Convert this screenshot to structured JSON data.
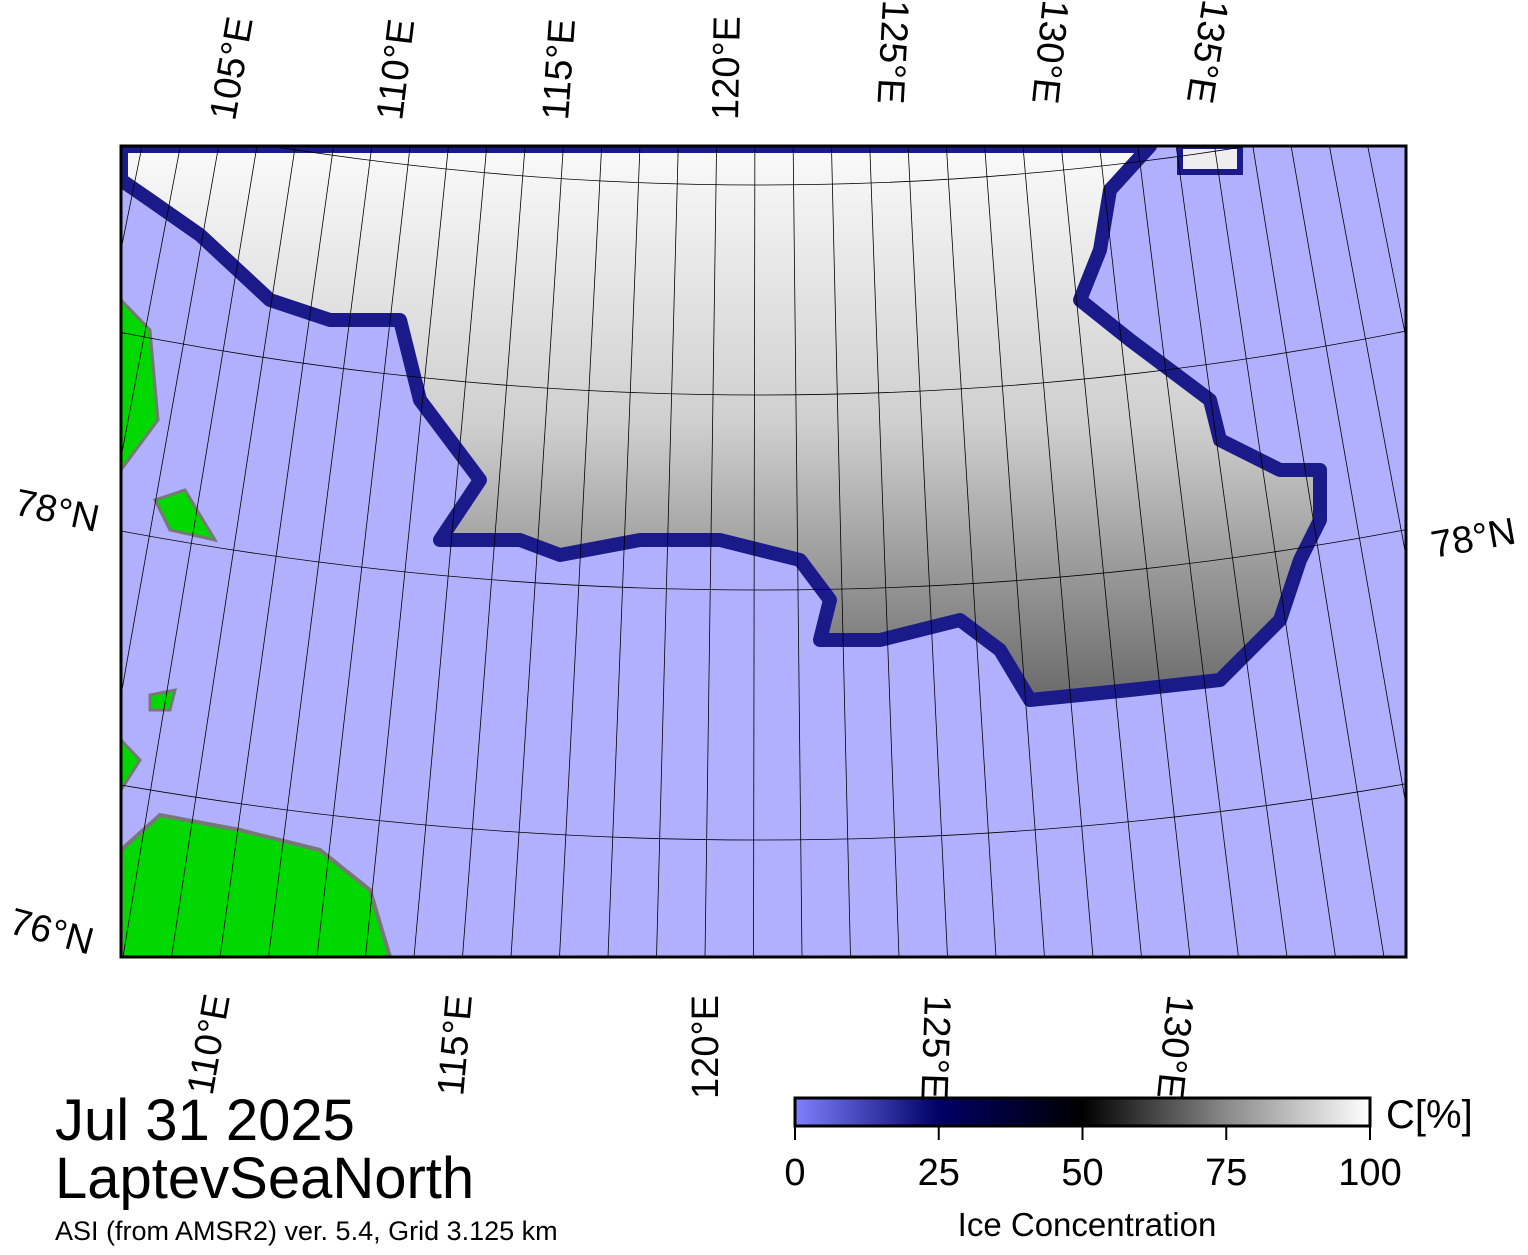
{
  "header": {
    "date": "Jul 31 2025",
    "region": "LaptevSeaNorth",
    "product": "ASI (from AMSR2) ver. 5.4,  Grid 3.125 km"
  },
  "map": {
    "lon_labels_top": [
      "105°E",
      "110°E",
      "115°E",
      "120°E",
      "125°E",
      "130°E",
      "135°E"
    ],
    "lon_labels_bottom": [
      "110°E",
      "115°E",
      "120°E",
      "125°E",
      "130°E"
    ],
    "lat_labels_left": [
      "78°N",
      "76°N"
    ],
    "lat_labels_right": [
      "78°N"
    ]
  },
  "colorbar": {
    "label": "Ice Concentration",
    "unit": "C[%]",
    "lim": [
      0,
      100
    ],
    "ticks": [
      0,
      25,
      50,
      75,
      100
    ]
  }
}
